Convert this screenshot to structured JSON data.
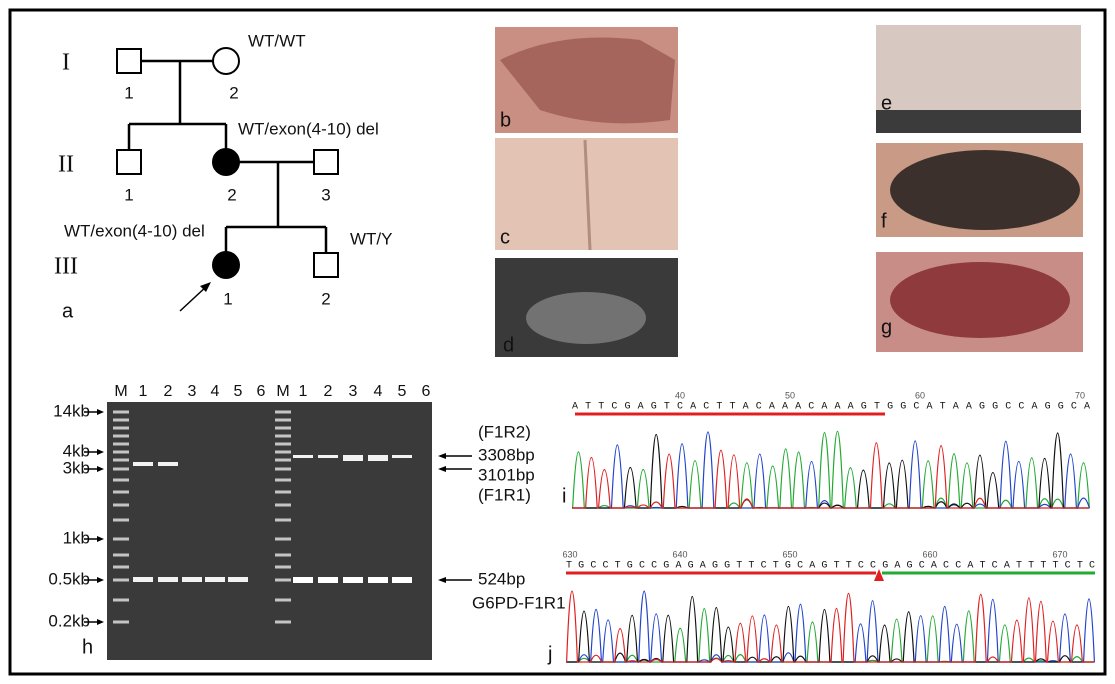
{
  "pedigree": {
    "panel": "a",
    "generations": [
      "I",
      "II",
      "III"
    ],
    "individuals": {
      "I_1": "1",
      "I_2": "2",
      "II_1": "1",
      "II_2": "2",
      "II_3": "3",
      "III_1": "1",
      "III_2": "2"
    },
    "genotypes": {
      "I_2": "WT/WT",
      "II_2": "WT/exon(4-10) del",
      "III_1": "WT/exon(4-10) del",
      "III_2": "WT/Y"
    }
  },
  "photos": {
    "panels": [
      "b",
      "c",
      "d",
      "e",
      "f",
      "g"
    ]
  },
  "gel": {
    "panel": "h",
    "lanes": [
      "M",
      "1",
      "2",
      "3",
      "4",
      "5",
      "6",
      "M",
      "1",
      "2",
      "3",
      "4",
      "5",
      "6"
    ],
    "size_markers": [
      "14kb",
      "4kb",
      "3kb",
      "1kb",
      "0.5kb",
      "0.2kb"
    ],
    "band_labels": [
      "(F1R2)",
      "3308bp",
      "3101bp",
      "(F1R1)",
      "524bp",
      "G6PD-F1R1"
    ]
  },
  "chromatograms": [
    {
      "panel": "i",
      "sequence": "ATTCGAGTCACTTACAAACAAAGTGGCATAAGGCCAGGCA",
      "positions": [
        40,
        50,
        60,
        70
      ]
    },
    {
      "panel": "j",
      "sequence": "TGCCTGCCGAGAGGTTCTGCAGTTCCGAGCACCATCATTTTCTC",
      "positions": [
        630,
        640,
        650,
        660,
        670
      ]
    }
  ]
}
